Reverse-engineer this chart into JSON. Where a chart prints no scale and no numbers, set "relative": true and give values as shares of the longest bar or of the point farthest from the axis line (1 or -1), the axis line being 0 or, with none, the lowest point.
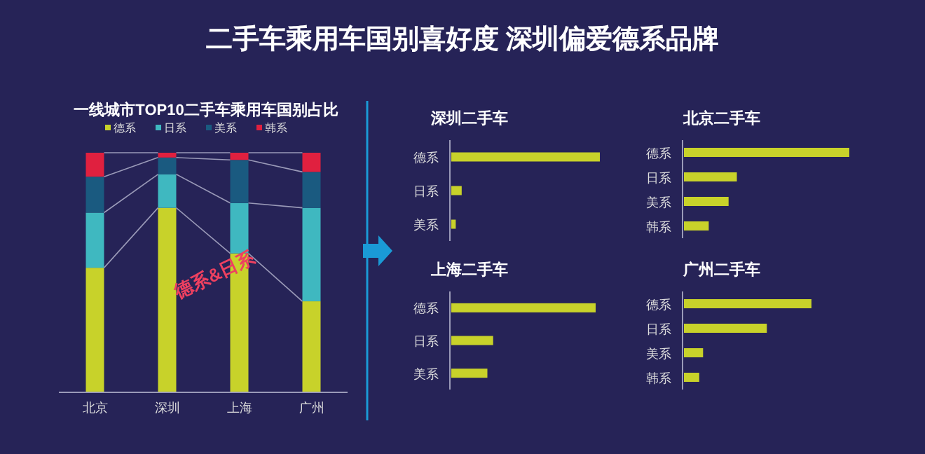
{
  "chart_data": [
    {
      "type": "bar",
      "title": "二手车乘用车国别喜好度  深圳偏爱德系品牌",
      "subtitle": "一线城市TOP10二手车乘用车国别占比",
      "categories": [
        "北京",
        "深圳",
        "上海",
        "广州"
      ],
      "stacked": true,
      "relative": true,
      "legend": "top",
      "annotations": [
        "德系&日系"
      ],
      "series": [
        {
          "name": "德系",
          "color": "#c8d22a",
          "values": [
            0.52,
            0.77,
            0.58,
            0.38
          ]
        },
        {
          "name": "日系",
          "color": "#3fb8c0",
          "values": [
            0.23,
            0.14,
            0.21,
            0.39
          ]
        },
        {
          "name": "美系",
          "color": "#1a5a80",
          "values": [
            0.15,
            0.07,
            0.18,
            0.15
          ]
        },
        {
          "name": "韩系",
          "color": "#e0203f",
          "values": [
            0.1,
            0.02,
            0.03,
            0.08
          ]
        }
      ]
    },
    {
      "type": "bar",
      "orientation": "horizontal",
      "relative": true,
      "title": "深圳二手车",
      "categories": [
        "德系",
        "日系",
        "美系"
      ],
      "series": [
        {
          "color": "#c8d22a",
          "values": [
            1,
            0.07,
            0.03
          ]
        }
      ]
    },
    {
      "type": "bar",
      "orientation": "horizontal",
      "relative": true,
      "title": "北京二手车",
      "categories": [
        "德系",
        "日系",
        "美系",
        "韩系"
      ],
      "series": [
        {
          "color": "#c8d22a",
          "values": [
            1,
            0.32,
            0.27,
            0.15
          ]
        }
      ]
    },
    {
      "type": "bar",
      "orientation": "horizontal",
      "relative": true,
      "title": "上海二手车",
      "categories": [
        "德系",
        "日系",
        "美系"
      ],
      "series": [
        {
          "color": "#c8d22a",
          "values": [
            1,
            0.29,
            0.25
          ]
        }
      ]
    },
    {
      "type": "bar",
      "orientation": "horizontal",
      "relative": true,
      "title": "广州二手车",
      "categories": [
        "德系",
        "日系",
        "美系",
        "韩系"
      ],
      "series": [
        {
          "color": "#c8d22a",
          "values": [
            1,
            0.65,
            0.15,
            0.12
          ]
        }
      ]
    }
  ]
}
